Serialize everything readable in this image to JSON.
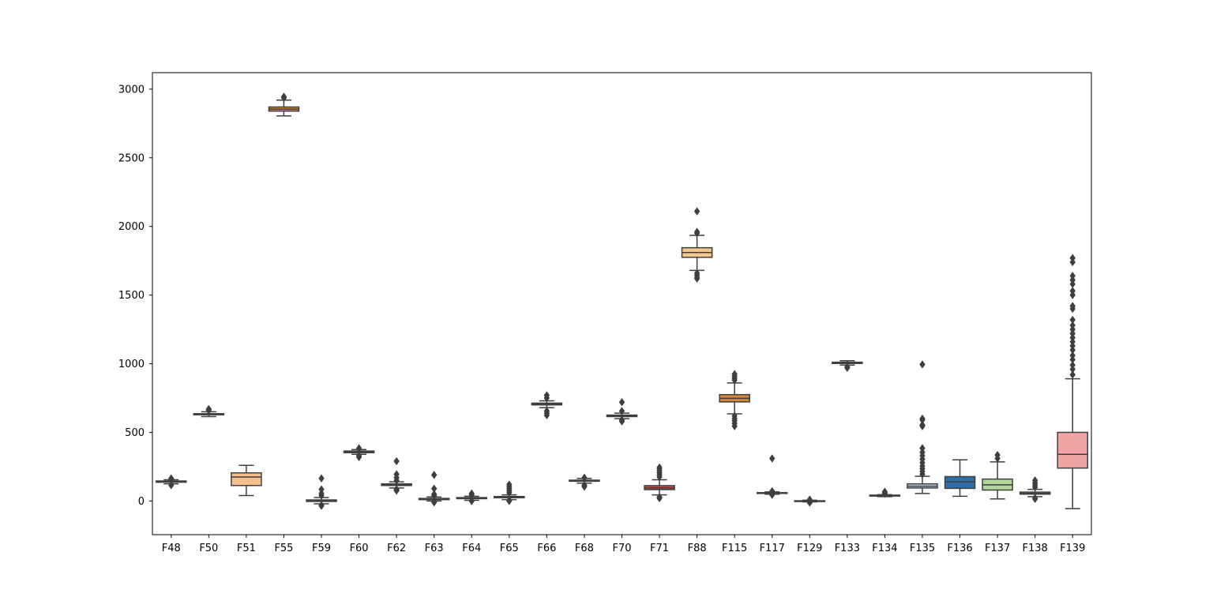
{
  "chart_data": {
    "type": "box",
    "title": "",
    "xlabel": "",
    "ylabel": "",
    "ylim": [
      -245,
      3120
    ],
    "yticks": [
      0,
      500,
      1000,
      1500,
      2000,
      2500,
      3000
    ],
    "grid": false,
    "legend": "none",
    "categories": [
      "F48",
      "F50",
      "F51",
      "F55",
      "F59",
      "F60",
      "F62",
      "F63",
      "F64",
      "F65",
      "F66",
      "F68",
      "F70",
      "F71",
      "F88",
      "F115",
      "F117",
      "F129",
      "F133",
      "F134",
      "F135",
      "F136",
      "F137",
      "F138",
      "F139"
    ],
    "boxes": [
      {
        "name": "F48",
        "color": "#e8c79b",
        "q1": 137,
        "median": 142,
        "q3": 146,
        "whislo": 125,
        "whishi": 155,
        "fliers": [
          115,
          160,
          165
        ]
      },
      {
        "name": "F50",
        "color": "#4f4f8f",
        "q1": 628,
        "median": 632,
        "q3": 636,
        "whislo": 615,
        "whishi": 650,
        "fliers": [
          660,
          665,
          670
        ]
      },
      {
        "name": "F51",
        "color": "#f5c08a",
        "q1": 113,
        "median": 175,
        "q3": 205,
        "whislo": 40,
        "whishi": 260,
        "fliers": []
      },
      {
        "name": "F55",
        "color": "#d7873a",
        "q1": 2840,
        "median": 2855,
        "q3": 2870,
        "whislo": 2805,
        "whishi": 2920,
        "fliers": [
          2935,
          2940,
          2945
        ]
      },
      {
        "name": "F59",
        "color": "#8fb9d8",
        "q1": -3,
        "median": 2,
        "q3": 8,
        "whislo": -20,
        "whishi": 25,
        "fliers": [
          -35,
          -30,
          40,
          55,
          85,
          165
        ]
      },
      {
        "name": "F60",
        "color": "#cfcfcf",
        "q1": 352,
        "median": 358,
        "q3": 364,
        "whislo": 340,
        "whishi": 375,
        "fliers": [
          320,
          330,
          385
        ]
      },
      {
        "name": "F62",
        "color": "#8aa0c8",
        "q1": 113,
        "median": 119,
        "q3": 125,
        "whislo": 95,
        "whishi": 140,
        "fliers": [
          75,
          80,
          85,
          150,
          170,
          195,
          290
        ]
      },
      {
        "name": "F63",
        "color": "#a8c8e0",
        "q1": 10,
        "median": 14,
        "q3": 19,
        "whislo": 0,
        "whishi": 30,
        "fliers": [
          -10,
          -5,
          40,
          50,
          90,
          190
        ]
      },
      {
        "name": "F64",
        "color": "#9acd82",
        "q1": 17,
        "median": 21,
        "q3": 25,
        "whislo": 5,
        "whishi": 35,
        "fliers": [
          0,
          45,
          55
        ]
      },
      {
        "name": "F65",
        "color": "#2f6f5f",
        "q1": 24,
        "median": 28,
        "q3": 33,
        "whislo": 10,
        "whishi": 45,
        "fliers": [
          0,
          5,
          60,
          75,
          90,
          105,
          120
        ]
      },
      {
        "name": "F66",
        "color": "#6d6d8d",
        "q1": 700,
        "median": 707,
        "q3": 713,
        "whislo": 680,
        "whishi": 730,
        "fliers": [
          625,
          640,
          655,
          750,
          770
        ]
      },
      {
        "name": "F68",
        "color": "#9ab0d0",
        "q1": 144,
        "median": 148,
        "q3": 152,
        "whislo": 130,
        "whishi": 165,
        "fliers": [
          105,
          115,
          170
        ]
      },
      {
        "name": "F70",
        "color": "#c8c8c8",
        "q1": 615,
        "median": 620,
        "q3": 626,
        "whislo": 600,
        "whishi": 640,
        "fliers": [
          580,
          590,
          655,
          720
        ]
      },
      {
        "name": "F71",
        "color": "#c94a4a",
        "q1": 83,
        "median": 95,
        "q3": 112,
        "whislo": 45,
        "whishi": 155,
        "fliers": [
          20,
          30,
          175,
          190,
          205,
          220,
          235,
          245
        ]
      },
      {
        "name": "F88",
        "color": "#f2c88f",
        "q1": 1775,
        "median": 1810,
        "q3": 1845,
        "whislo": 1680,
        "whishi": 1935,
        "fliers": [
          1620,
          1630,
          1645,
          1660,
          1950,
          1960,
          2110
        ]
      },
      {
        "name": "F115",
        "color": "#d7873a",
        "q1": 722,
        "median": 748,
        "q3": 775,
        "whislo": 635,
        "whishi": 860,
        "fliers": [
          545,
          565,
          585,
          600,
          620,
          880,
          895,
          910,
          925
        ]
      },
      {
        "name": "F117",
        "color": "#e6d8a0",
        "q1": 55,
        "median": 58,
        "q3": 61,
        "whislo": 50,
        "whishi": 66,
        "fliers": [
          45,
          72,
          310
        ]
      },
      {
        "name": "F129",
        "color": "#6a6aaa",
        "q1": -2,
        "median": 0,
        "q3": 2,
        "whislo": -6,
        "whishi": 6,
        "fliers": [
          -12,
          -8,
          10
        ]
      },
      {
        "name": "F133",
        "color": "#5c5c5c",
        "q1": 1002,
        "median": 1006,
        "q3": 1011,
        "whislo": 990,
        "whishi": 1022,
        "fliers": [
          970,
          978
        ]
      },
      {
        "name": "F134",
        "color": "#b5b5b5",
        "q1": 36,
        "median": 40,
        "q3": 43,
        "whislo": 32,
        "whishi": 46,
        "fliers": [
          52,
          60,
          68
        ]
      },
      {
        "name": "F135",
        "color": "#b9d1e6",
        "q1": 95,
        "median": 108,
        "q3": 125,
        "whislo": 55,
        "whishi": 180,
        "fliers": [
          195,
          215,
          235,
          255,
          280,
          305,
          330,
          355,
          385,
          545,
          555,
          590,
          600,
          995
        ]
      },
      {
        "name": "F136",
        "color": "#2e6fa8",
        "q1": 92,
        "median": 140,
        "q3": 178,
        "whislo": 35,
        "whishi": 300,
        "fliers": []
      },
      {
        "name": "F137",
        "color": "#b2d69a",
        "q1": 80,
        "median": 118,
        "q3": 160,
        "whislo": 15,
        "whishi": 285,
        "fliers": [
          310,
          335
        ]
      },
      {
        "name": "F138",
        "color": "#c6dfa8",
        "q1": 50,
        "median": 57,
        "q3": 65,
        "whislo": 32,
        "whishi": 85,
        "fliers": [
          15,
          22,
          100,
          115,
          130,
          150
        ]
      },
      {
        "name": "F139",
        "color": "#f0a4a4",
        "q1": 240,
        "median": 340,
        "q3": 500,
        "whislo": -55,
        "whishi": 890,
        "fliers": [
          920,
          960,
          990,
          1030,
          1060,
          1100,
          1130,
          1160,
          1190,
          1220,
          1250,
          1280,
          1320,
          1400,
          1420,
          1500,
          1530,
          1580,
          1610,
          1640,
          1740,
          1770
        ]
      }
    ]
  }
}
